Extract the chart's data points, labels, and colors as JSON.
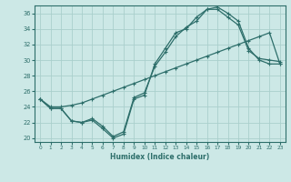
{
  "xlabel": "Humidex (Indice chaleur)",
  "ylabel": "",
  "xlim": [
    -0.5,
    23.5
  ],
  "ylim": [
    19.5,
    37
  ],
  "yticks": [
    20,
    22,
    24,
    26,
    28,
    30,
    32,
    34,
    36
  ],
  "xticks": [
    0,
    1,
    2,
    3,
    4,
    5,
    6,
    7,
    8,
    9,
    10,
    11,
    12,
    13,
    14,
    15,
    16,
    17,
    18,
    19,
    20,
    21,
    22,
    23
  ],
  "bg_color": "#cce8e6",
  "grid_color": "#aacfcc",
  "line_color": "#2d6e6a",
  "line1_x": [
    0,
    1,
    2,
    3,
    4,
    5,
    6,
    7,
    8,
    9,
    10,
    11,
    12,
    13,
    14,
    15,
    16,
    17,
    18,
    19,
    20,
    21,
    22,
    23
  ],
  "line1_y": [
    25.0,
    23.8,
    23.8,
    22.2,
    22.0,
    22.3,
    21.2,
    20.0,
    20.5,
    25.0,
    25.5,
    29.5,
    31.5,
    33.5,
    34.0,
    35.5,
    36.5,
    36.8,
    36.0,
    35.0,
    31.5,
    30.0,
    29.5,
    29.5
  ],
  "line2_x": [
    0,
    1,
    2,
    3,
    4,
    5,
    6,
    7,
    8,
    9,
    10,
    11,
    12,
    13,
    14,
    15,
    16,
    17,
    18,
    19,
    20,
    21,
    22,
    23
  ],
  "line2_y": [
    25.0,
    24.0,
    24.0,
    24.2,
    24.5,
    25.0,
    25.5,
    26.0,
    26.5,
    27.0,
    27.5,
    28.0,
    28.5,
    29.0,
    29.5,
    30.0,
    30.5,
    31.0,
    31.5,
    32.0,
    32.5,
    33.0,
    33.5,
    29.5
  ],
  "line3_x": [
    0,
    1,
    2,
    3,
    4,
    5,
    6,
    7,
    8,
    9,
    10,
    11,
    12,
    13,
    14,
    15,
    16,
    17,
    18,
    19,
    20,
    21,
    22,
    23
  ],
  "line3_y": [
    25.0,
    23.8,
    23.8,
    22.2,
    22.0,
    22.5,
    21.5,
    20.2,
    20.8,
    25.2,
    25.8,
    29.2,
    31.0,
    33.0,
    34.2,
    35.0,
    36.5,
    36.5,
    35.5,
    34.5,
    31.2,
    30.2,
    30.0,
    29.8
  ]
}
